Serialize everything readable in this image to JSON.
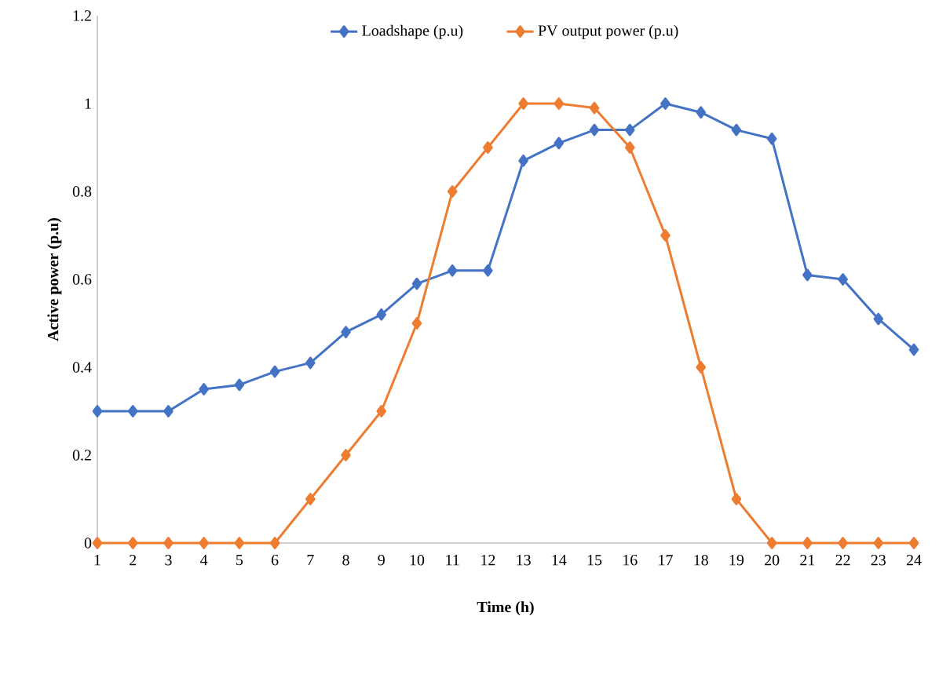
{
  "chart_data": {
    "type": "line",
    "xlabel": "Time (h)",
    "ylabel": "Active power (p.u)",
    "categories": [
      "1",
      "2",
      "3",
      "4",
      "5",
      "6",
      "7",
      "8",
      "9",
      "10",
      "11",
      "12",
      "13",
      "14",
      "15",
      "16",
      "17",
      "18",
      "19",
      "20",
      "21",
      "22",
      "23",
      "24"
    ],
    "series": [
      {
        "name": "Loadshape (p.u)",
        "color": "#4472c4",
        "values": [
          0.3,
          0.3,
          0.3,
          0.35,
          0.36,
          0.39,
          0.41,
          0.48,
          0.52,
          0.59,
          0.62,
          0.62,
          0.87,
          0.91,
          0.94,
          0.94,
          1.0,
          0.98,
          0.94,
          0.92,
          0.61,
          0.6,
          0.51,
          0.44
        ]
      },
      {
        "name": "PV output power (p.u)",
        "color": "#ed7d31",
        "values": [
          0,
          0,
          0,
          0,
          0,
          0,
          0.1,
          0.2,
          0.3,
          0.5,
          0.8,
          0.9,
          1,
          1,
          0.99,
          0.9,
          0.7,
          0.4,
          0.1,
          0,
          0,
          0,
          0,
          0
        ]
      }
    ],
    "ylim": [
      0,
      1.2
    ],
    "yticks": [
      0,
      0.2,
      0.4,
      0.6,
      0.8,
      1,
      1.2
    ],
    "grid": false,
    "legend": "top",
    "marker": "diamond",
    "line_style": "solid"
  }
}
